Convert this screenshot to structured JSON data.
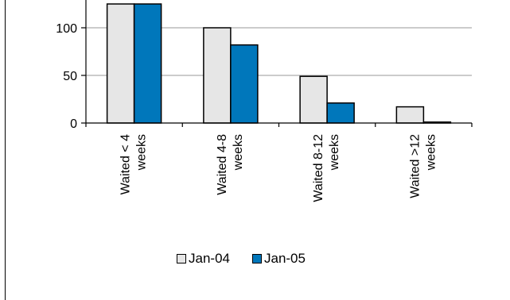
{
  "chart_data": {
    "type": "bar",
    "categories": [
      [
        "Waited < 4",
        "weeks"
      ],
      [
        "Waited 4-8",
        "weeks"
      ],
      [
        "Waited 8-12",
        "weeks"
      ],
      [
        "Waited >12",
        "weeks"
      ]
    ],
    "series": [
      {
        "name": "Jan-04",
        "values": [
          125,
          100,
          49,
          17
        ],
        "color": "#e6e6e6"
      },
      {
        "name": "Jan-05",
        "values": [
          125,
          82,
          21,
          1
        ],
        "color": "#0077bb"
      }
    ],
    "y_ticks": [
      "0",
      "50",
      "100"
    ],
    "ylim": [
      0,
      100
    ],
    "gridlines": true,
    "legend_position": "bottom"
  }
}
